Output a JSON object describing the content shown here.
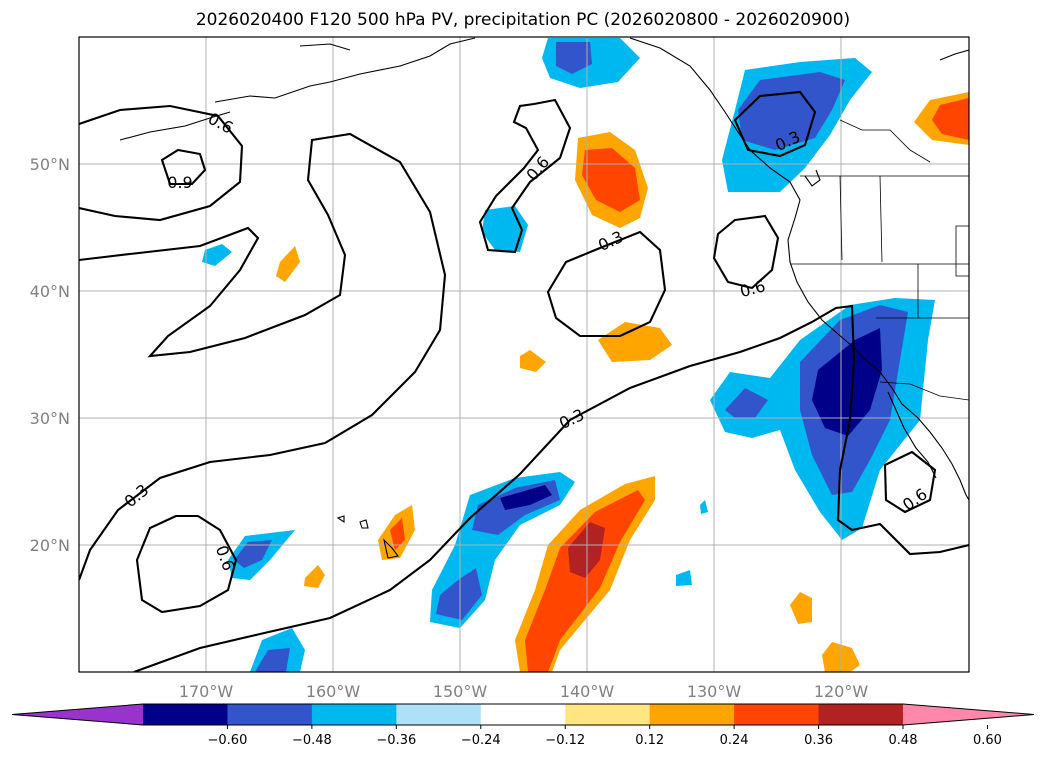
{
  "chart_data": {
    "type": "map-contour",
    "title": "2026020400 F120 500 hPa PV, precipitation PC (2026020800 - 2026020900)",
    "x_tick_labels": [
      "170°W",
      "160°W",
      "150°W",
      "140°W",
      "130°W",
      "120°W"
    ],
    "y_tick_labels": [
      "20°N",
      "30°N",
      "40°N",
      "50°N"
    ],
    "lon_range": [
      -180,
      -110
    ],
    "lat_range": [
      10,
      60
    ],
    "colorbar": {
      "ticks": [
        "−0.60",
        "−0.48",
        "−0.36",
        "−0.24",
        "−0.12",
        "0.12",
        "0.24",
        "0.36",
        "0.48",
        "0.60"
      ],
      "colors": [
        "#9933cc",
        "#000088",
        "#3355cc",
        "#00b8f0",
        "#aee0f8",
        "#ffffff",
        "#ffe680",
        "#ffa500",
        "#ff4500",
        "#b22222",
        "#ff88aa"
      ],
      "extend": "both"
    },
    "contour_labels": [
      "0.6",
      "0.9",
      "0.3",
      "0.6",
      "0.3",
      "0.6",
      "0.3",
      "0.3",
      "0.3",
      "0.6",
      "0.6",
      "0.3",
      "0.6"
    ],
    "contour_levels": [
      0.3,
      0.6,
      0.9
    ]
  }
}
